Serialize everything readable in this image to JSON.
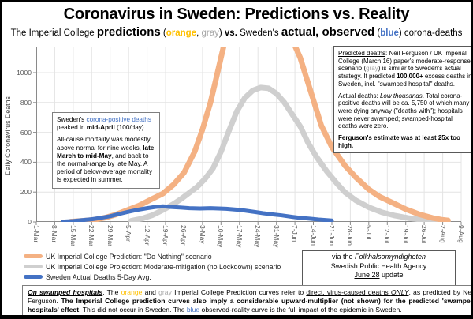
{
  "title": "Coronavirus in Sweden: Predictions vs. Reality",
  "subtitle_segments": [
    {
      "t": "The Imperial College ",
      "c": ""
    },
    {
      "t": "predictions",
      "c": "lg"
    },
    {
      "t": " (",
      "c": ""
    },
    {
      "t": "orange",
      "c": "b c-orange"
    },
    {
      "t": ", ",
      "c": ""
    },
    {
      "t": "gray",
      "c": "c-gray"
    },
    {
      "t": ") ",
      "c": ""
    },
    {
      "t": "vs.",
      "c": "b"
    },
    {
      "t": " Sweden's ",
      "c": ""
    },
    {
      "t": "actual, observed",
      "c": "lg"
    },
    {
      "t": " (",
      "c": ""
    },
    {
      "t": "blue",
      "c": "b c-blue"
    },
    {
      "t": ") corona-deaths",
      "c": ""
    }
  ],
  "chart_data": {
    "type": "line",
    "title": "Coronavirus in Sweden: Predictions vs. Reality",
    "xlabel": "",
    "ylabel": "Daily Coronavirus Deaths",
    "x_encoding": "days since 1-Mar, one tick per week",
    "x_tick_labels": [
      "1-Mar",
      "8-Mar",
      "15-Mar",
      "22-Mar",
      "29-Mar",
      "5-Apr",
      "12-Apr",
      "19-Apr",
      "26-Apr",
      "3-May",
      "10-May",
      "17-May",
      "24-May",
      "31-May",
      "7-Jun",
      "14-Jun",
      "21-Jun",
      "28-Jun",
      "5-Jul",
      "12-Jul",
      "19-Jul",
      "26-Jul",
      "2-Aug",
      "9-Aug"
    ],
    "yticks": [
      0,
      200,
      400,
      600,
      800,
      1000
    ],
    "ylim": [
      0,
      1170
    ],
    "grid": true,
    "legend_position": "bottom-left",
    "series": [
      {
        "name": "UK Imperial College Prediction: \"Do Nothing\" scenario",
        "color": "#F4B183",
        "points": [
          [
            13,
            2
          ],
          [
            18,
            8
          ],
          [
            22,
            15
          ],
          [
            26,
            28
          ],
          [
            30,
            48
          ],
          [
            34,
            75
          ],
          [
            39,
            110
          ],
          [
            44,
            155
          ],
          [
            48,
            190
          ],
          [
            52,
            250
          ],
          [
            56,
            330
          ],
          [
            60,
            470
          ],
          [
            63,
            620
          ],
          [
            66,
            800
          ],
          [
            68,
            950
          ],
          [
            70,
            1100
          ],
          [
            72,
            1250
          ],
          [
            76,
            1420
          ],
          [
            81,
            1520
          ],
          [
            86,
            1540
          ],
          [
            91,
            1430
          ],
          [
            95,
            1280
          ],
          [
            98,
            1180
          ],
          [
            100,
            1100
          ],
          [
            103,
            930
          ],
          [
            106,
            760
          ],
          [
            108,
            645
          ],
          [
            112,
            500
          ],
          [
            117,
            376
          ],
          [
            121,
            300
          ],
          [
            126,
            218
          ],
          [
            130,
            170
          ],
          [
            135,
            128
          ],
          [
            140,
            85
          ],
          [
            145,
            52
          ],
          [
            150,
            27
          ],
          [
            154,
            14
          ],
          [
            156,
            10
          ]
        ]
      },
      {
        "name": "UK Imperial College Projection: Moderate-mitigation (no Lockdown) scenario",
        "color": "#CFCFCF",
        "points": [
          [
            36,
            8
          ],
          [
            40,
            22
          ],
          [
            44,
            45
          ],
          [
            48,
            80
          ],
          [
            52,
            120
          ],
          [
            55,
            155
          ],
          [
            58,
            195
          ],
          [
            61,
            235
          ],
          [
            64,
            290
          ],
          [
            67,
            360
          ],
          [
            70,
            470
          ],
          [
            73,
            610
          ],
          [
            76,
            740
          ],
          [
            79,
            830
          ],
          [
            82,
            880
          ],
          [
            85,
            900
          ],
          [
            88,
            895
          ],
          [
            91,
            860
          ],
          [
            94,
            800
          ],
          [
            97,
            720
          ],
          [
            100,
            640
          ],
          [
            103,
            530
          ],
          [
            106,
            440
          ],
          [
            110,
            340
          ],
          [
            114,
            255
          ],
          [
            117,
            198
          ],
          [
            121,
            145
          ],
          [
            126,
            98
          ],
          [
            131,
            64
          ],
          [
            136,
            42
          ],
          [
            141,
            26
          ],
          [
            146,
            15
          ],
          [
            151,
            8
          ],
          [
            156,
            5
          ]
        ]
      },
      {
        "name": "Sweden Actual Deaths 5-Day Avg.",
        "color": "#4472C4",
        "points": [
          [
            10,
            2
          ],
          [
            14,
            6
          ],
          [
            17,
            11
          ],
          [
            21,
            18
          ],
          [
            24,
            26
          ],
          [
            28,
            38
          ],
          [
            31,
            52
          ],
          [
            35,
            68
          ],
          [
            38,
            80
          ],
          [
            42,
            92
          ],
          [
            45,
            100
          ],
          [
            48,
            104
          ],
          [
            51,
            100
          ],
          [
            55,
            96
          ],
          [
            58,
            92
          ],
          [
            62,
            90
          ],
          [
            66,
            92
          ],
          [
            69,
            90
          ],
          [
            72,
            88
          ],
          [
            76,
            82
          ],
          [
            79,
            76
          ],
          [
            83,
            66
          ],
          [
            86,
            58
          ],
          [
            90,
            50
          ],
          [
            93,
            44
          ],
          [
            97,
            34
          ],
          [
            100,
            27
          ],
          [
            104,
            21
          ],
          [
            107,
            16
          ],
          [
            110,
            12
          ],
          [
            112,
            9
          ]
        ]
      }
    ]
  },
  "annotations": {
    "left_box": {
      "paragraphs": [
        [
          {
            "t": "Sweden's ",
            "c": ""
          },
          {
            "t": "corona-positive deaths",
            "c": "c-blue"
          },
          {
            "t": " peaked in ",
            "c": ""
          },
          {
            "t": "mid-April",
            "c": "b"
          },
          {
            "t": " (100/day).",
            "c": ""
          }
        ],
        [
          {
            "t": "All-cause mortality was modestly above normal for nine weeks, ",
            "c": ""
          },
          {
            "t": "late March to mid-May",
            "c": "b"
          },
          {
            "t": ", and back to the normal-range by late May. A period of below-average mortality is expected in summer.",
            "c": ""
          }
        ]
      ]
    },
    "right_box": {
      "paragraphs": [
        [
          {
            "t": "Predicted deaths",
            "c": "u"
          },
          {
            "t": ": Neil Ferguson / UK Imperial College (March 16) paper's moderate-response scenario (",
            "c": ""
          },
          {
            "t": "gray",
            "c": "c-gray"
          },
          {
            "t": ") is similar to Sweden's actual strategy. It predicted ",
            "c": ""
          },
          {
            "t": "100,000+",
            "c": "b"
          },
          {
            "t": " excess deaths in Sweden, incl. \"swamped hospital\" deaths.",
            "c": ""
          }
        ],
        [
          {
            "t": "Actual deaths",
            "c": "u"
          },
          {
            "t": ": ",
            "c": ""
          },
          {
            "t": "Low thousands",
            "c": "i"
          },
          {
            "t": ". Total corona-positive deaths will be ca. 5,750 of which many were dying anyway (\"deaths with\"); hospitals were never swamped; swamped-hospital deaths were zero.",
            "c": ""
          }
        ],
        [
          {
            "t": "Ferguson's estimate was at least ",
            "c": "b"
          },
          {
            "t": "25x",
            "c": "b u"
          },
          {
            "t": " too high.",
            "c": "b"
          }
        ]
      ]
    },
    "source_box": {
      "lines": [
        [
          {
            "t": "via the ",
            "c": ""
          },
          {
            "t": "Folkhalsomyndigheten",
            "c": "i"
          }
        ],
        [
          {
            "t": "Swedish Public Health Agency",
            "c": ""
          }
        ],
        [
          {
            "t": "June 28",
            "c": "u"
          },
          {
            "t": " update",
            "c": ""
          }
        ]
      ]
    },
    "footnote_box": {
      "paragraphs": [
        [
          {
            "t": "On swamped hospitals",
            "c": "b i u"
          },
          {
            "t": ". The ",
            "c": ""
          },
          {
            "t": "orange",
            "c": "c-orange"
          },
          {
            "t": " and ",
            "c": ""
          },
          {
            "t": "gray",
            "c": "c-gray"
          },
          {
            "t": " Imperial College Prediction curves refer to ",
            "c": ""
          },
          {
            "t": "direct, virus-caused deaths ",
            "c": "u"
          },
          {
            "t": "ONLY",
            "c": "i u"
          },
          {
            "t": ", as predicted by Neil Ferguson. ",
            "c": ""
          },
          {
            "t": "The Imperial College prediction curves also imply a considerable upward-multiplier (not shown) for the predicted 'swamped hospitals' effect",
            "c": "b"
          },
          {
            "t": ". This did ",
            "c": ""
          },
          {
            "t": "not",
            "c": "u"
          },
          {
            "t": " occur in Sweden. The ",
            "c": ""
          },
          {
            "t": "blue",
            "c": "c-blue"
          },
          {
            "t": " observed-reality curve is the full impact of the epidemic in Sweden.",
            "c": ""
          }
        ]
      ]
    }
  },
  "colors": {
    "curve_orange": "#F4B183",
    "curve_gray": "#CFCFCF",
    "curve_blue": "#4472C4",
    "word_orange": "#FFC000",
    "word_gray": "#A6A6A6",
    "word_blue": "#4472C4",
    "axis_text": "#595959",
    "gridline": "#E4E4E4",
    "frame": "#000000"
  }
}
